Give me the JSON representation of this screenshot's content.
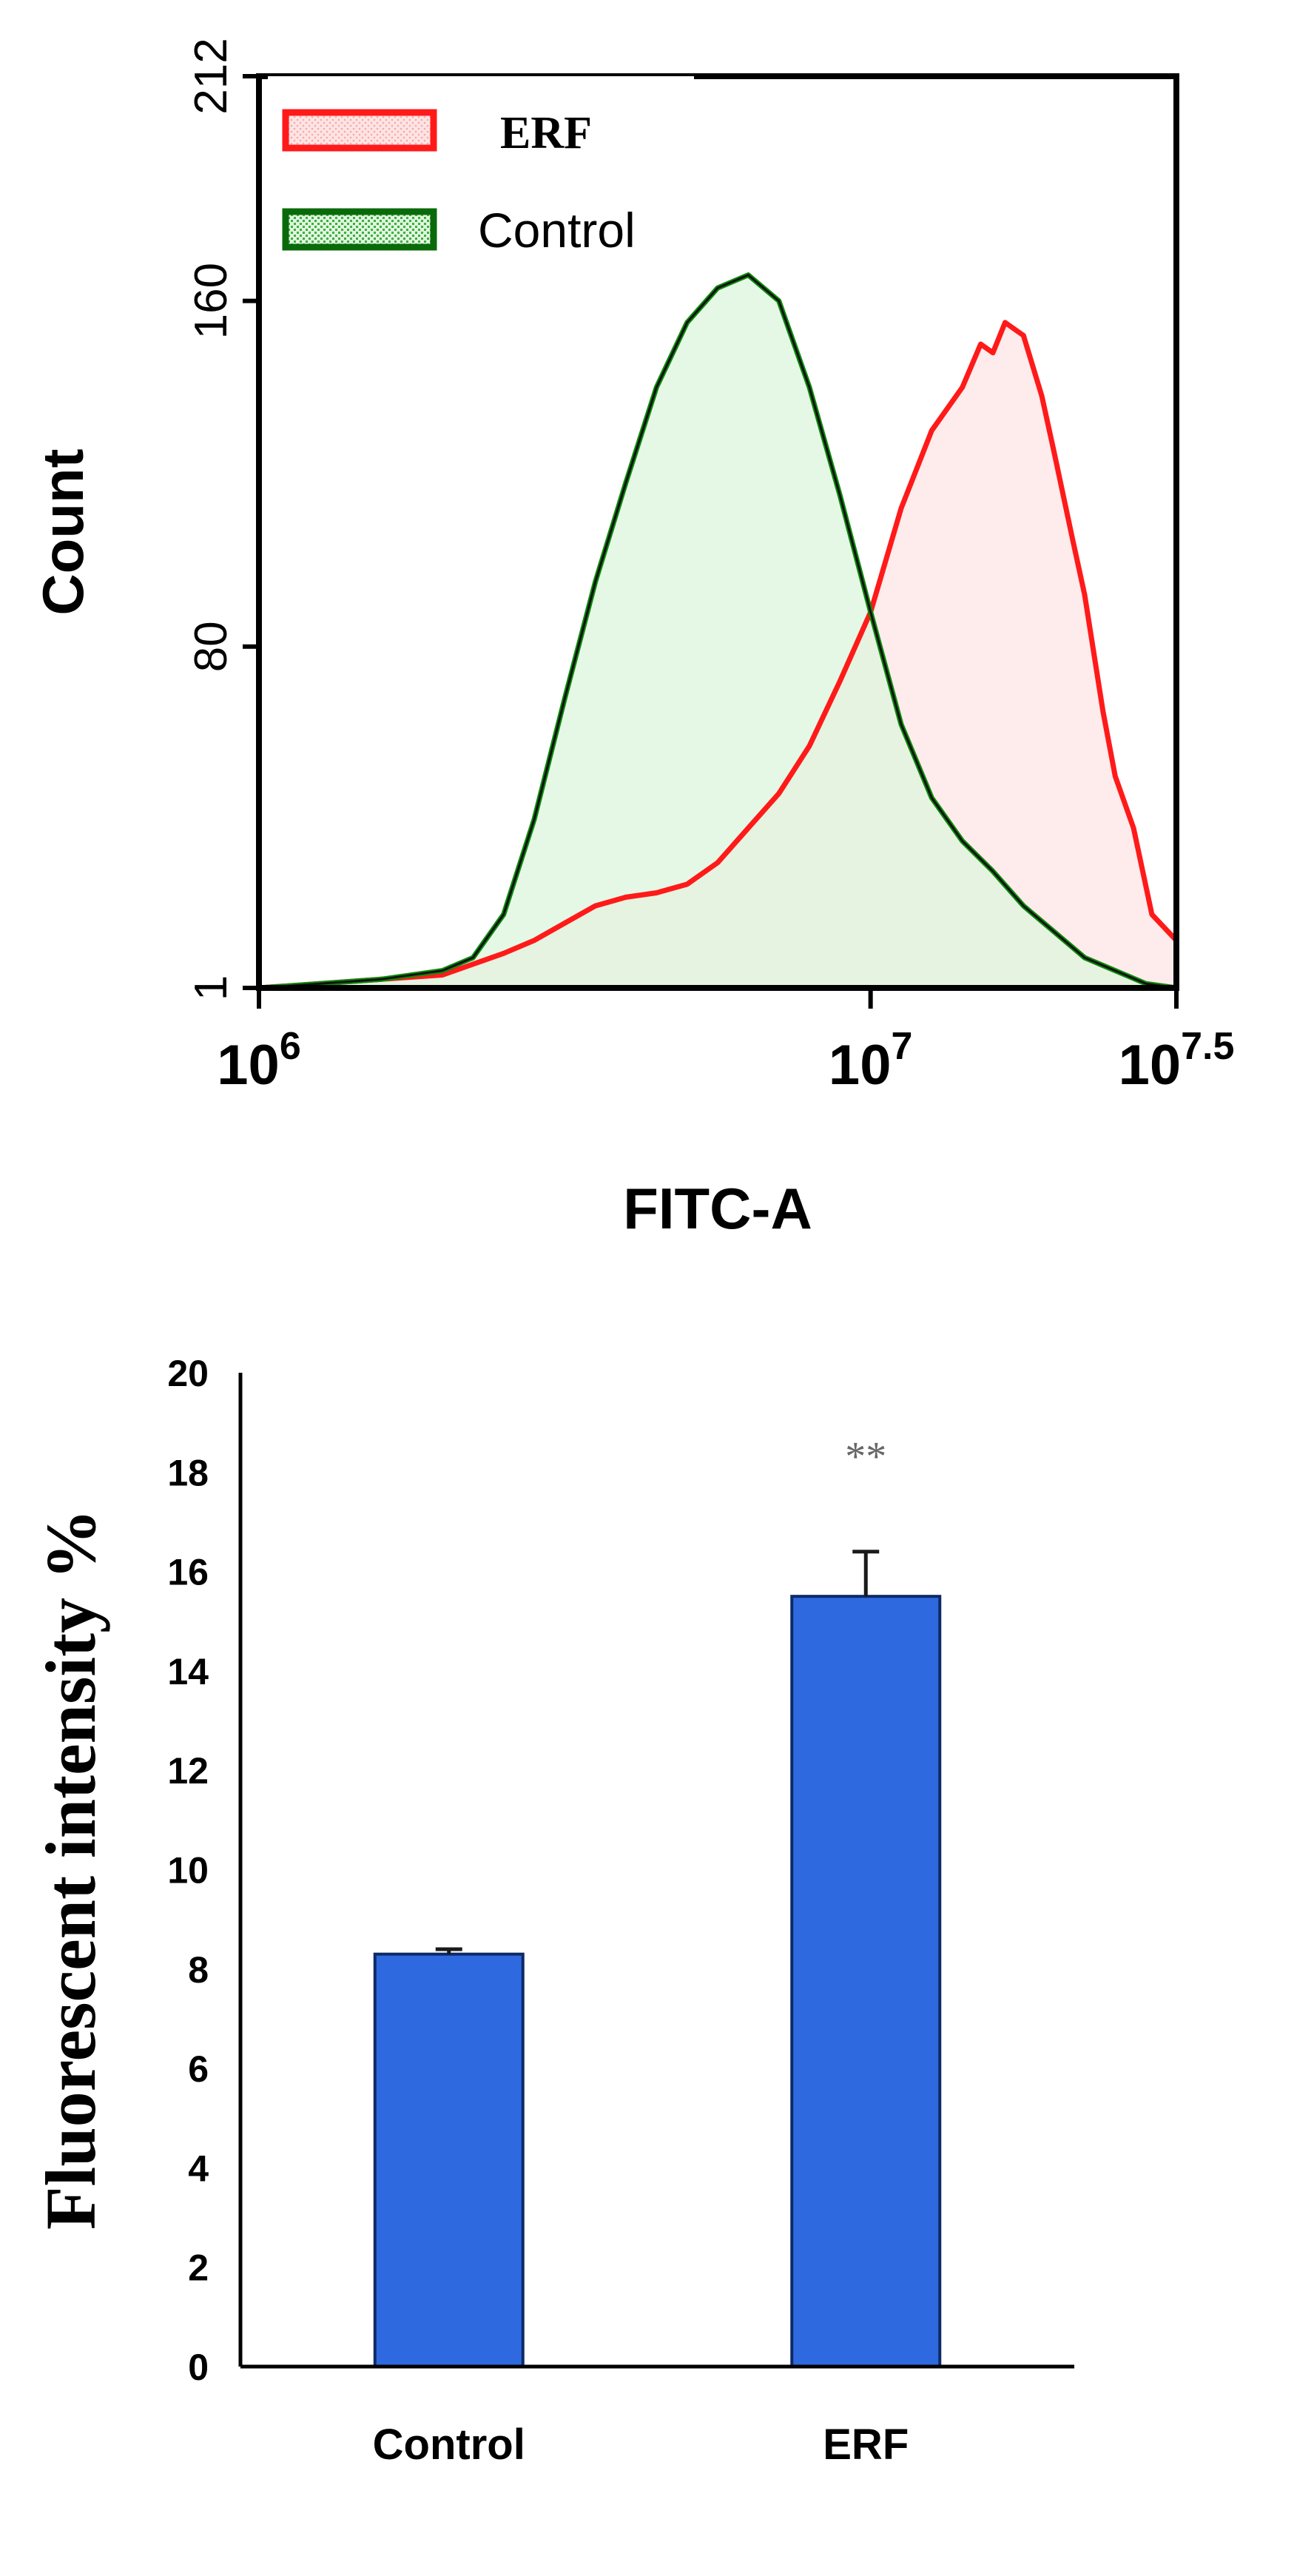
{
  "chart_data": [
    {
      "type": "area",
      "title": "",
      "xlabel": "FITC-A",
      "ylabel": "Count",
      "x_scale": "log10",
      "xlim": [
        6,
        7.5
      ],
      "ylim": [
        1,
        212
      ],
      "x_ticks": [
        {
          "value": 6,
          "base": "10",
          "exp": "6"
        },
        {
          "value": 7,
          "base": "10",
          "exp": "7"
        },
        {
          "value": 7.5,
          "base": "10",
          "exp": "7.5"
        }
      ],
      "y_ticks": [
        {
          "value": 1,
          "label": "1"
        },
        {
          "value": 80,
          "label": "80"
        },
        {
          "value": 160,
          "label": "160"
        },
        {
          "value": 212,
          "label": "212"
        }
      ],
      "legend_position": "top-left",
      "series": [
        {
          "name": "ERF",
          "color": "#ff1a1a",
          "fill": "#fde4e4",
          "x": [
            6.0,
            6.1,
            6.2,
            6.3,
            6.4,
            6.45,
            6.5,
            6.55,
            6.6,
            6.65,
            6.7,
            6.75,
            6.8,
            6.85,
            6.9,
            6.95,
            7.0,
            7.05,
            7.1,
            7.15,
            7.18,
            7.2,
            7.22,
            7.25,
            7.28,
            7.3,
            7.33,
            7.35,
            7.38,
            7.4,
            7.43,
            7.46,
            7.5
          ],
          "values": [
            1,
            2,
            3,
            4,
            9,
            12,
            16,
            20,
            22,
            23,
            25,
            30,
            38,
            46,
            57,
            72,
            88,
            112,
            130,
            140,
            150,
            148,
            155,
            152,
            138,
            125,
            105,
            92,
            65,
            50,
            38,
            18,
            12
          ]
        },
        {
          "name": "Control",
          "color": "#0a8a0a",
          "fill": "#dcf5dc",
          "x": [
            6.0,
            6.1,
            6.2,
            6.3,
            6.35,
            6.4,
            6.45,
            6.5,
            6.55,
            6.6,
            6.65,
            6.7,
            6.75,
            6.8,
            6.85,
            6.9,
            6.95,
            7.0,
            7.05,
            7.1,
            7.15,
            7.2,
            7.25,
            7.3,
            7.35,
            7.4,
            7.45,
            7.5
          ],
          "values": [
            1,
            2,
            3,
            5,
            8,
            18,
            40,
            68,
            95,
            118,
            140,
            155,
            163,
            166,
            160,
            140,
            115,
            88,
            62,
            45,
            35,
            28,
            20,
            14,
            8,
            5,
            2,
            1
          ]
        }
      ]
    },
    {
      "type": "bar",
      "title": "",
      "xlabel": "",
      "ylabel": "Fluorescent intensity %",
      "categories": [
        "Control",
        "ERF"
      ],
      "values": [
        8.3,
        15.5
      ],
      "errors": [
        0.1,
        0.9
      ],
      "ylim": [
        0,
        20
      ],
      "y_ticks": [
        "0",
        "2",
        "4",
        "6",
        "8",
        "10",
        "12",
        "14",
        "16",
        "18",
        "20"
      ],
      "bar_color": "#2e69e0",
      "annotations": [
        {
          "category": "ERF",
          "text": "**"
        }
      ]
    }
  ]
}
